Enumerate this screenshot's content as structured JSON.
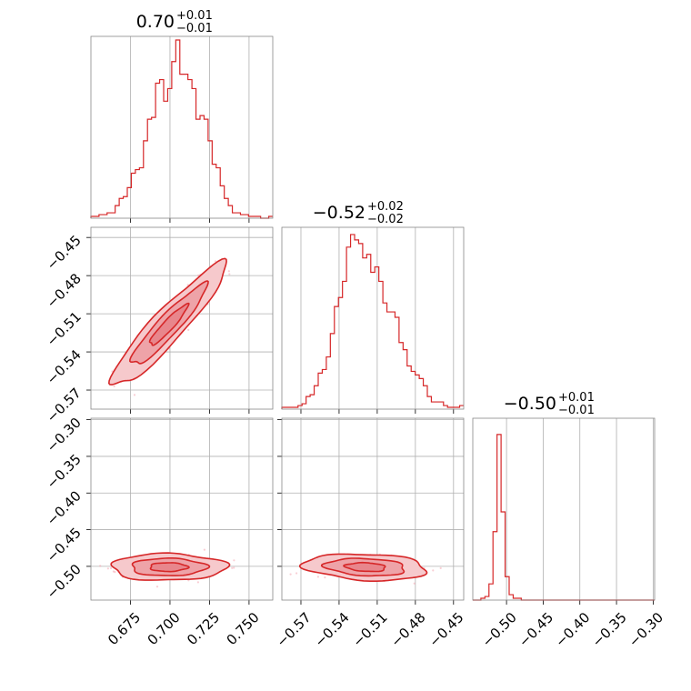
{
  "colors": {
    "primary": "#d62728",
    "scatter": "#f4a6b0",
    "frame": "#888888",
    "grid": "#b0b0b0"
  },
  "chart_data": {
    "type": "corner",
    "grid": true,
    "parameters": [
      {
        "median": "0.70",
        "plus": "+0.01",
        "minus": "−0.01",
        "center": 0.699,
        "sigma": 0.012,
        "range": [
          0.65,
          0.765
        ],
        "ticks": [
          0.675,
          0.7,
          0.725,
          0.75
        ],
        "tick_labels": [
          "0.675",
          "0.700",
          "0.725",
          "0.750"
        ]
      },
      {
        "median": "−0.52",
        "plus": "+0.02",
        "minus": "−0.02",
        "center": -0.519,
        "sigma": 0.016,
        "range": [
          -0.585,
          -0.442
        ],
        "ticks": [
          -0.57,
          -0.54,
          -0.51,
          -0.48,
          -0.45
        ],
        "tick_labels": [
          "−0.57",
          "−0.54",
          "−0.51",
          "−0.48",
          "−0.45"
        ]
      },
      {
        "median": "−0.50",
        "plus": "+0.01",
        "minus": "−0.01",
        "center": -0.501,
        "sigma": 0.006,
        "range": [
          -0.546,
          -0.298
        ],
        "ticks": [
          -0.5,
          -0.45,
          -0.4,
          -0.35,
          -0.3
        ],
        "tick_labels": [
          "−0.50",
          "−0.45",
          "−0.40",
          "−0.35",
          "−0.30"
        ]
      }
    ],
    "histograms": [
      {
        "param": 0,
        "bins": 45,
        "range": [
          0.65,
          0.765
        ],
        "heights": [
          0.01,
          0.01,
          0.02,
          0.02,
          0.03,
          0.03,
          0.07,
          0.11,
          0.12,
          0.17,
          0.25,
          0.27,
          0.28,
          0.43,
          0.55,
          0.56,
          0.75,
          0.77,
          0.65,
          0.72,
          0.87,
          0.99,
          0.8,
          0.8,
          0.77,
          0.72,
          0.55,
          0.57,
          0.55,
          0.43,
          0.3,
          0.28,
          0.18,
          0.11,
          0.07,
          0.03,
          0.03,
          0.02,
          0.02,
          0.01,
          0.01,
          0.01,
          0.0,
          0.0,
          0.01
        ]
      },
      {
        "param": 1,
        "bins": 45,
        "range": [
          -0.585,
          -0.442
        ],
        "heights": [
          0.01,
          0.01,
          0.01,
          0.01,
          0.02,
          0.03,
          0.07,
          0.08,
          0.13,
          0.2,
          0.22,
          0.29,
          0.42,
          0.57,
          0.62,
          0.71,
          0.9,
          0.97,
          0.94,
          0.92,
          0.84,
          0.86,
          0.76,
          0.79,
          0.71,
          0.59,
          0.54,
          0.54,
          0.51,
          0.37,
          0.33,
          0.24,
          0.21,
          0.19,
          0.17,
          0.13,
          0.07,
          0.04,
          0.04,
          0.04,
          0.02,
          0.01,
          0.01,
          0.01,
          0.02
        ]
      },
      {
        "param": 2,
        "bins": 45,
        "range": [
          -0.546,
          -0.298
        ],
        "heights": [
          0.0,
          0.0,
          0.01,
          0.02,
          0.09,
          0.38,
          0.92,
          0.49,
          0.13,
          0.03,
          0.01,
          0.01,
          0.0,
          0.0,
          0.0,
          0.0,
          0.0,
          0.0,
          0.0,
          0.0,
          0.0,
          0.0,
          0.0,
          0.0,
          0.0,
          0.0,
          0.0,
          0.0,
          0.0,
          0.0,
          0.0,
          0.0,
          0.0,
          0.0,
          0.0,
          0.0,
          0.0,
          0.0,
          0.0,
          0.0,
          0.0,
          0.0,
          0.0,
          0.0,
          0.0
        ]
      }
    ],
    "joint_panels": [
      {
        "x_param": 0,
        "y_param": 1,
        "correlation": 0.93,
        "contour_levels": [
          0.39,
          0.86,
          0.99
        ]
      },
      {
        "x_param": 0,
        "y_param": 2,
        "correlation": 0.0,
        "contour_levels": [
          0.39,
          0.86,
          0.99
        ]
      },
      {
        "x_param": 1,
        "y_param": 2,
        "correlation": -0.2,
        "contour_levels": [
          0.39,
          0.86,
          0.99
        ]
      }
    ],
    "scatter_points_per_panel": 520
  }
}
